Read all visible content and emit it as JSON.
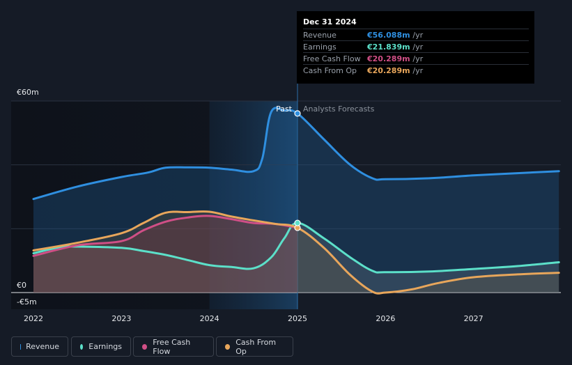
{
  "tooltip": {
    "date": "Dec 31 2024",
    "rows": [
      {
        "label": "Revenue",
        "value": "€56.088m",
        "unit": "/yr",
        "color": "#2f8fe0"
      },
      {
        "label": "Earnings",
        "value": "€21.839m",
        "unit": "/yr",
        "color": "#5ce0c9"
      },
      {
        "label": "Free Cash Flow",
        "value": "€20.289m",
        "unit": "/yr",
        "color": "#d04f86"
      },
      {
        "label": "Cash From Op",
        "value": "€20.289m",
        "unit": "/yr",
        "color": "#e8a65b"
      }
    ]
  },
  "legend": {
    "revenue": "Revenue",
    "earnings": "Earnings",
    "fcf": "Free Cash Flow",
    "cfo": "Cash From Op"
  },
  "chart_data": {
    "type": "line",
    "title": "",
    "xlabel": "",
    "ylabel": "",
    "xlim": [
      2021.8,
      2027.97
    ],
    "ylim": [
      -5,
      60
    ],
    "y_tick_labels": [
      {
        "label": "€60m",
        "value": 60
      },
      {
        "label": "€0",
        "value": 0
      },
      {
        "label": "-€5m",
        "value": -5
      }
    ],
    "x_ticks": [
      {
        "label": "2022",
        "value": 2022
      },
      {
        "label": "2023",
        "value": 2023
      },
      {
        "label": "2024",
        "value": 2024
      },
      {
        "label": "2025",
        "value": 2025
      },
      {
        "label": "2026",
        "value": 2026
      },
      {
        "label": "2027",
        "value": 2027
      }
    ],
    "divider_x": 2025,
    "past_label": "Past",
    "forecast_label": "Analysts Forecasts",
    "highlight_start": 2024,
    "series": [
      {
        "name": "Revenue",
        "color": "#2f8fe0",
        "points": [
          [
            2022,
            29.3
          ],
          [
            2022.5,
            33.2
          ],
          [
            2023,
            36.2
          ],
          [
            2023.3,
            37.6
          ],
          [
            2023.5,
            39.1
          ],
          [
            2023.75,
            39.2
          ],
          [
            2024,
            39.1
          ],
          [
            2024.25,
            38.5
          ],
          [
            2024.5,
            38.0
          ],
          [
            2024.6,
            42
          ],
          [
            2024.7,
            56.5
          ],
          [
            2024.85,
            57
          ],
          [
            2025,
            56.1
          ],
          [
            2025.3,
            48
          ],
          [
            2025.6,
            40
          ],
          [
            2025.85,
            35.8
          ],
          [
            2026,
            35.5
          ],
          [
            2026.5,
            35.8
          ],
          [
            2027,
            36.7
          ],
          [
            2027.5,
            37.4
          ],
          [
            2027.97,
            38.0
          ]
        ]
      },
      {
        "name": "Earnings",
        "color": "#5ce0c9",
        "points": [
          [
            2022,
            12.3
          ],
          [
            2022.3,
            14.2
          ],
          [
            2022.5,
            14.4
          ],
          [
            2023,
            14.0
          ],
          [
            2023.25,
            13.0
          ],
          [
            2023.5,
            11.8
          ],
          [
            2023.75,
            10.2
          ],
          [
            2024,
            8.6
          ],
          [
            2024.25,
            8.0
          ],
          [
            2024.5,
            7.6
          ],
          [
            2024.7,
            11
          ],
          [
            2024.85,
            17
          ],
          [
            2025,
            21.8
          ],
          [
            2025.3,
            17
          ],
          [
            2025.6,
            11
          ],
          [
            2025.85,
            6.8
          ],
          [
            2026,
            6.4
          ],
          [
            2026.5,
            6.6
          ],
          [
            2027,
            7.4
          ],
          [
            2027.5,
            8.3
          ],
          [
            2027.97,
            9.5
          ]
        ]
      },
      {
        "name": "Free Cash Flow",
        "color": "#d04f86",
        "points": [
          [
            2022,
            11.5
          ],
          [
            2022.5,
            14.8
          ],
          [
            2023,
            16.1
          ],
          [
            2023.25,
            19.5
          ],
          [
            2023.5,
            22.2
          ],
          [
            2023.75,
            23.5
          ],
          [
            2024,
            24
          ],
          [
            2024.25,
            23
          ],
          [
            2024.5,
            21.8
          ],
          [
            2024.75,
            21.5
          ],
          [
            2025,
            20.3
          ]
        ]
      },
      {
        "name": "Cash From Op",
        "color": "#e8a65b",
        "points": [
          [
            2022,
            13.2
          ],
          [
            2022.5,
            15.6
          ],
          [
            2023,
            18.6
          ],
          [
            2023.25,
            21.8
          ],
          [
            2023.5,
            25.0
          ],
          [
            2023.75,
            25.2
          ],
          [
            2024,
            25.3
          ],
          [
            2024.25,
            23.8
          ],
          [
            2024.5,
            22.6
          ],
          [
            2024.75,
            21.5
          ],
          [
            2025,
            20.3
          ],
          [
            2025.3,
            14
          ],
          [
            2025.6,
            5.5
          ],
          [
            2025.85,
            0.3
          ],
          [
            2026,
            0
          ],
          [
            2026.3,
            1.0
          ],
          [
            2026.6,
            3.0
          ],
          [
            2027,
            4.8
          ],
          [
            2027.5,
            5.7
          ],
          [
            2027.97,
            6.2
          ]
        ]
      }
    ]
  }
}
